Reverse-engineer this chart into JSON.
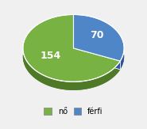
{
  "values": [
    154,
    70
  ],
  "legend_labels": [
    "nő",
    "férfi"
  ],
  "colors_top": [
    "#77b243",
    "#4f86c8"
  ],
  "colors_side": [
    "#4e7a28",
    "#2a52a0"
  ],
  "text_labels": [
    "154",
    "70"
  ],
  "startangle": 90,
  "background_color": "#f0f0f0",
  "figsize": [
    1.85,
    1.63
  ],
  "dpi": 100
}
